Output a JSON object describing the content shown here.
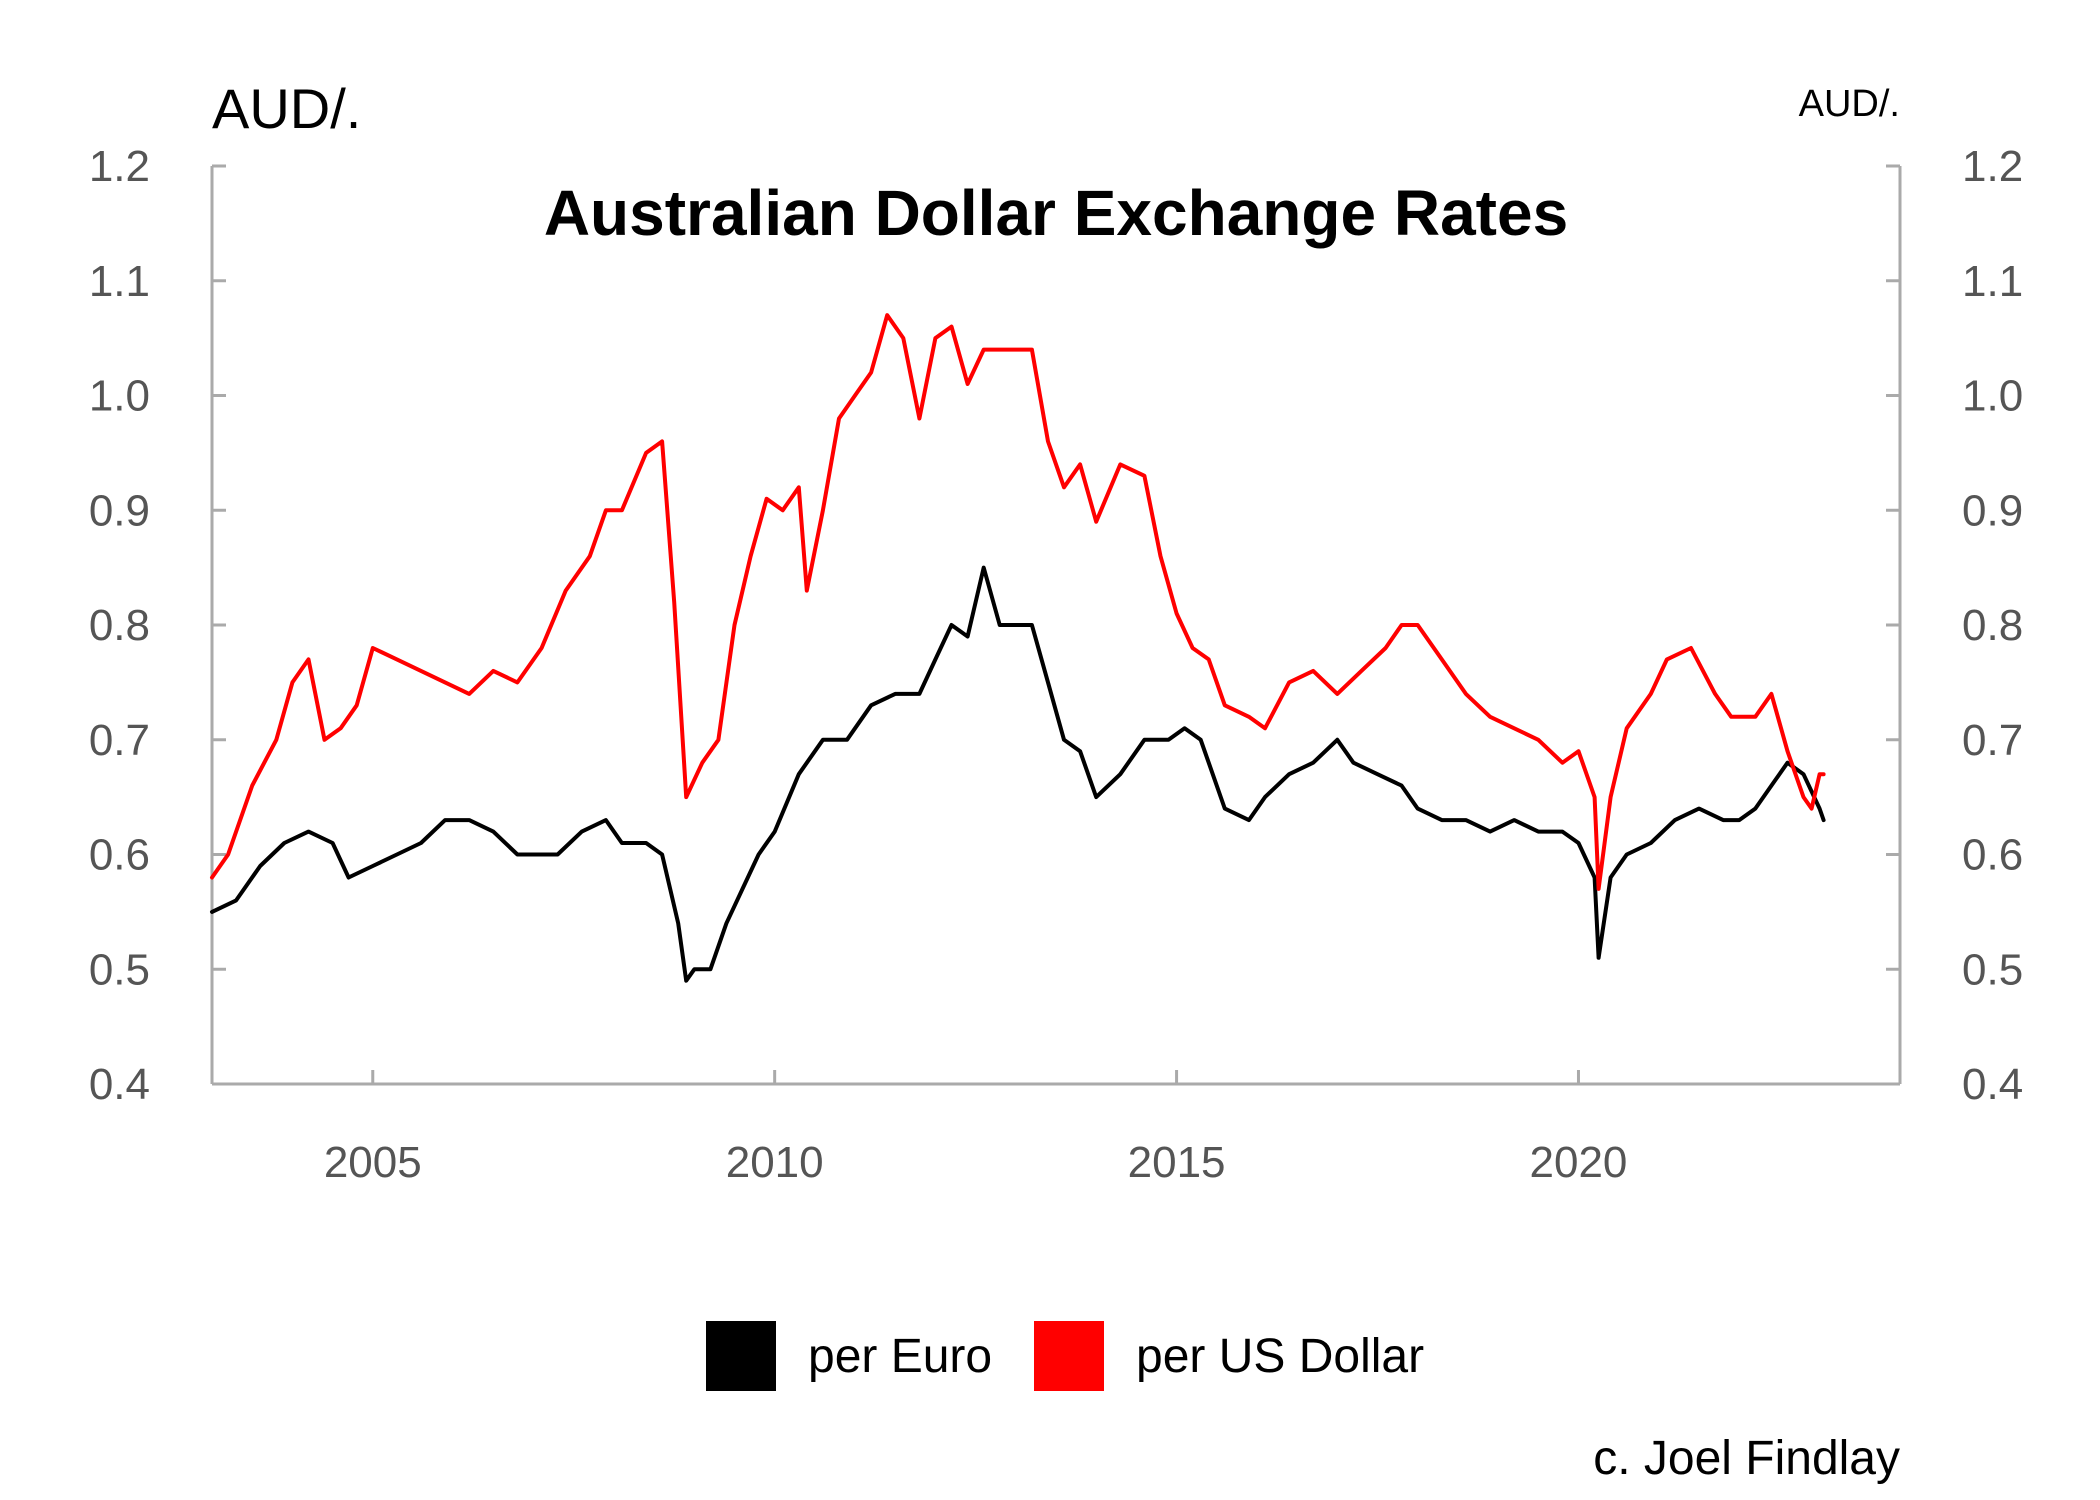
{
  "chart_data": {
    "type": "line",
    "title": "Australian Dollar Exchange Rates",
    "unit_left": "AUD/.",
    "unit_right": "AUD/.",
    "credit": "c. Joel Findlay",
    "xlim": [
      2003.0,
      2024.0
    ],
    "ylim": [
      0.4,
      1.2
    ],
    "x_ticks": [
      2005,
      2010,
      2015,
      2020
    ],
    "x_tick_labels": [
      "2005",
      "2010",
      "2015",
      "2020"
    ],
    "y_ticks": [
      0.4,
      0.5,
      0.6,
      0.7,
      0.8,
      0.9,
      1.0,
      1.1,
      1.2
    ],
    "y_tick_labels": [
      "0.4",
      "0.5",
      "0.6",
      "0.7",
      "0.8",
      "0.9",
      "1.0",
      "1.1",
      "1.2"
    ],
    "grid": false,
    "legend_position": "bottom-center",
    "series": [
      {
        "name": "per Euro",
        "color": "#000000",
        "points": [
          [
            2003.0,
            0.55
          ],
          [
            2003.3,
            0.56
          ],
          [
            2003.6,
            0.59
          ],
          [
            2003.9,
            0.61
          ],
          [
            2004.2,
            0.62
          ],
          [
            2004.5,
            0.61
          ],
          [
            2004.7,
            0.58
          ],
          [
            2005.0,
            0.59
          ],
          [
            2005.3,
            0.6
          ],
          [
            2005.6,
            0.61
          ],
          [
            2005.9,
            0.63
          ],
          [
            2006.2,
            0.63
          ],
          [
            2006.5,
            0.62
          ],
          [
            2006.8,
            0.6
          ],
          [
            2007.0,
            0.6
          ],
          [
            2007.3,
            0.6
          ],
          [
            2007.6,
            0.62
          ],
          [
            2007.9,
            0.63
          ],
          [
            2008.1,
            0.61
          ],
          [
            2008.4,
            0.61
          ],
          [
            2008.6,
            0.6
          ],
          [
            2008.8,
            0.54
          ],
          [
            2008.9,
            0.49
          ],
          [
            2009.0,
            0.5
          ],
          [
            2009.2,
            0.5
          ],
          [
            2009.4,
            0.54
          ],
          [
            2009.6,
            0.57
          ],
          [
            2009.8,
            0.6
          ],
          [
            2010.0,
            0.62
          ],
          [
            2010.3,
            0.67
          ],
          [
            2010.6,
            0.7
          ],
          [
            2010.9,
            0.7
          ],
          [
            2011.2,
            0.73
          ],
          [
            2011.5,
            0.74
          ],
          [
            2011.8,
            0.74
          ],
          [
            2012.0,
            0.77
          ],
          [
            2012.2,
            0.8
          ],
          [
            2012.4,
            0.79
          ],
          [
            2012.6,
            0.85
          ],
          [
            2012.8,
            0.8
          ],
          [
            2013.0,
            0.8
          ],
          [
            2013.2,
            0.8
          ],
          [
            2013.4,
            0.75
          ],
          [
            2013.6,
            0.7
          ],
          [
            2013.8,
            0.69
          ],
          [
            2014.0,
            0.65
          ],
          [
            2014.3,
            0.67
          ],
          [
            2014.6,
            0.7
          ],
          [
            2014.9,
            0.7
          ],
          [
            2015.1,
            0.71
          ],
          [
            2015.3,
            0.7
          ],
          [
            2015.6,
            0.64
          ],
          [
            2015.9,
            0.63
          ],
          [
            2016.1,
            0.65
          ],
          [
            2016.4,
            0.67
          ],
          [
            2016.7,
            0.68
          ],
          [
            2017.0,
            0.7
          ],
          [
            2017.2,
            0.68
          ],
          [
            2017.5,
            0.67
          ],
          [
            2017.8,
            0.66
          ],
          [
            2018.0,
            0.64
          ],
          [
            2018.3,
            0.63
          ],
          [
            2018.6,
            0.63
          ],
          [
            2018.9,
            0.62
          ],
          [
            2019.2,
            0.63
          ],
          [
            2019.5,
            0.62
          ],
          [
            2019.8,
            0.62
          ],
          [
            2020.0,
            0.61
          ],
          [
            2020.2,
            0.58
          ],
          [
            2020.25,
            0.51
          ],
          [
            2020.4,
            0.58
          ],
          [
            2020.6,
            0.6
          ],
          [
            2020.9,
            0.61
          ],
          [
            2021.2,
            0.63
          ],
          [
            2021.5,
            0.64
          ],
          [
            2021.8,
            0.63
          ],
          [
            2022.0,
            0.63
          ],
          [
            2022.2,
            0.64
          ],
          [
            2022.4,
            0.66
          ],
          [
            2022.6,
            0.68
          ],
          [
            2022.8,
            0.67
          ],
          [
            2023.0,
            0.64
          ],
          [
            2023.05,
            0.63
          ]
        ]
      },
      {
        "name": "per US Dollar",
        "color": "#ff0000",
        "points": [
          [
            2003.0,
            0.58
          ],
          [
            2003.2,
            0.6
          ],
          [
            2003.5,
            0.66
          ],
          [
            2003.8,
            0.7
          ],
          [
            2004.0,
            0.75
          ],
          [
            2004.2,
            0.77
          ],
          [
            2004.4,
            0.7
          ],
          [
            2004.6,
            0.71
          ],
          [
            2004.8,
            0.73
          ],
          [
            2005.0,
            0.78
          ],
          [
            2005.3,
            0.77
          ],
          [
            2005.6,
            0.76
          ],
          [
            2005.9,
            0.75
          ],
          [
            2006.2,
            0.74
          ],
          [
            2006.5,
            0.76
          ],
          [
            2006.8,
            0.75
          ],
          [
            2007.1,
            0.78
          ],
          [
            2007.4,
            0.83
          ],
          [
            2007.7,
            0.86
          ],
          [
            2007.9,
            0.9
          ],
          [
            2008.1,
            0.9
          ],
          [
            2008.4,
            0.95
          ],
          [
            2008.6,
            0.96
          ],
          [
            2008.75,
            0.82
          ],
          [
            2008.9,
            0.65
          ],
          [
            2009.1,
            0.68
          ],
          [
            2009.3,
            0.7
          ],
          [
            2009.5,
            0.8
          ],
          [
            2009.7,
            0.86
          ],
          [
            2009.9,
            0.91
          ],
          [
            2010.1,
            0.9
          ],
          [
            2010.3,
            0.92
          ],
          [
            2010.4,
            0.83
          ],
          [
            2010.6,
            0.9
          ],
          [
            2010.8,
            0.98
          ],
          [
            2011.0,
            1.0
          ],
          [
            2011.2,
            1.02
          ],
          [
            2011.4,
            1.07
          ],
          [
            2011.6,
            1.05
          ],
          [
            2011.8,
            0.98
          ],
          [
            2012.0,
            1.05
          ],
          [
            2012.2,
            1.06
          ],
          [
            2012.4,
            1.01
          ],
          [
            2012.6,
            1.04
          ],
          [
            2012.8,
            1.04
          ],
          [
            2013.0,
            1.04
          ],
          [
            2013.2,
            1.04
          ],
          [
            2013.4,
            0.96
          ],
          [
            2013.6,
            0.92
          ],
          [
            2013.8,
            0.94
          ],
          [
            2014.0,
            0.89
          ],
          [
            2014.3,
            0.94
          ],
          [
            2014.6,
            0.93
          ],
          [
            2014.8,
            0.86
          ],
          [
            2015.0,
            0.81
          ],
          [
            2015.2,
            0.78
          ],
          [
            2015.4,
            0.77
          ],
          [
            2015.6,
            0.73
          ],
          [
            2015.9,
            0.72
          ],
          [
            2016.1,
            0.71
          ],
          [
            2016.4,
            0.75
          ],
          [
            2016.7,
            0.76
          ],
          [
            2017.0,
            0.74
          ],
          [
            2017.3,
            0.76
          ],
          [
            2017.6,
            0.78
          ],
          [
            2017.8,
            0.8
          ],
          [
            2018.0,
            0.8
          ],
          [
            2018.3,
            0.77
          ],
          [
            2018.6,
            0.74
          ],
          [
            2018.9,
            0.72
          ],
          [
            2019.2,
            0.71
          ],
          [
            2019.5,
            0.7
          ],
          [
            2019.8,
            0.68
          ],
          [
            2020.0,
            0.69
          ],
          [
            2020.2,
            0.65
          ],
          [
            2020.25,
            0.57
          ],
          [
            2020.4,
            0.65
          ],
          [
            2020.6,
            0.71
          ],
          [
            2020.9,
            0.74
          ],
          [
            2021.1,
            0.77
          ],
          [
            2021.4,
            0.78
          ],
          [
            2021.7,
            0.74
          ],
          [
            2021.9,
            0.72
          ],
          [
            2022.2,
            0.72
          ],
          [
            2022.4,
            0.74
          ],
          [
            2022.6,
            0.69
          ],
          [
            2022.8,
            0.65
          ],
          [
            2022.9,
            0.64
          ],
          [
            2023.0,
            0.67
          ],
          [
            2023.05,
            0.67
          ]
        ]
      }
    ],
    "legend": [
      {
        "label": "per Euro",
        "color": "#000000"
      },
      {
        "label": "per US Dollar",
        "color": "#ff0000"
      }
    ]
  }
}
